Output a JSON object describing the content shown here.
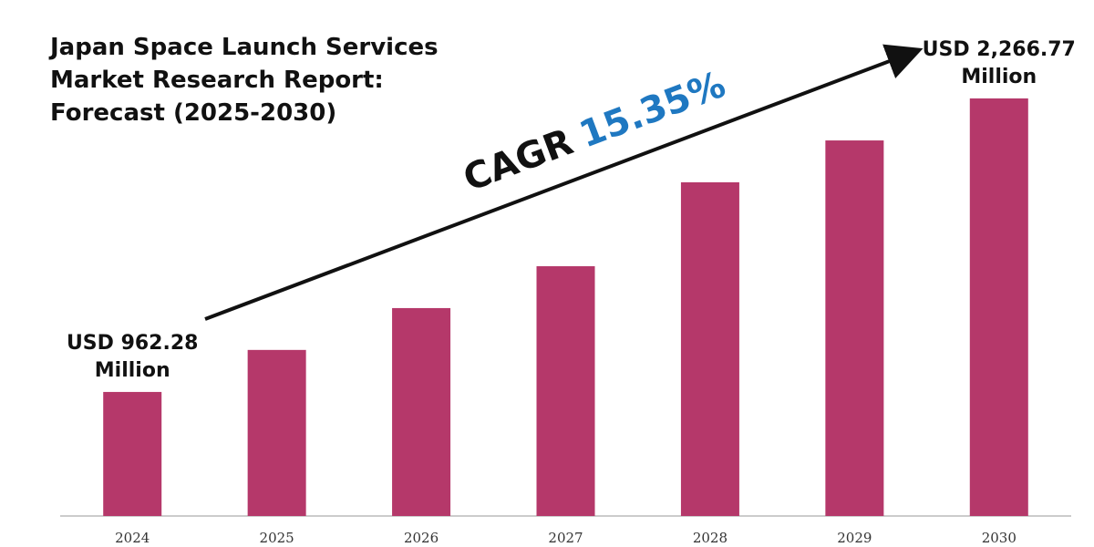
{
  "chart_data": {
    "type": "bar",
    "title": "Japan Space Launch Services Market Research Report: Forecast (2025-2030)",
    "categories": [
      "2024",
      "2025",
      "2026",
      "2027",
      "2028",
      "2029",
      "2030"
    ],
    "values": [
      962.28,
      1149,
      1335,
      1521,
      1894,
      2080,
      2266.77
    ],
    "value_labels": [
      "USD 962.28 Million",
      null,
      null,
      null,
      null,
      null,
      "USD 2,266.77 Million"
    ],
    "color": "#b5386a",
    "ylim": [
      411,
      2380
    ],
    "annotations": {
      "cagr_label": "CAGR",
      "cagr_value": "15.35%"
    }
  }
}
